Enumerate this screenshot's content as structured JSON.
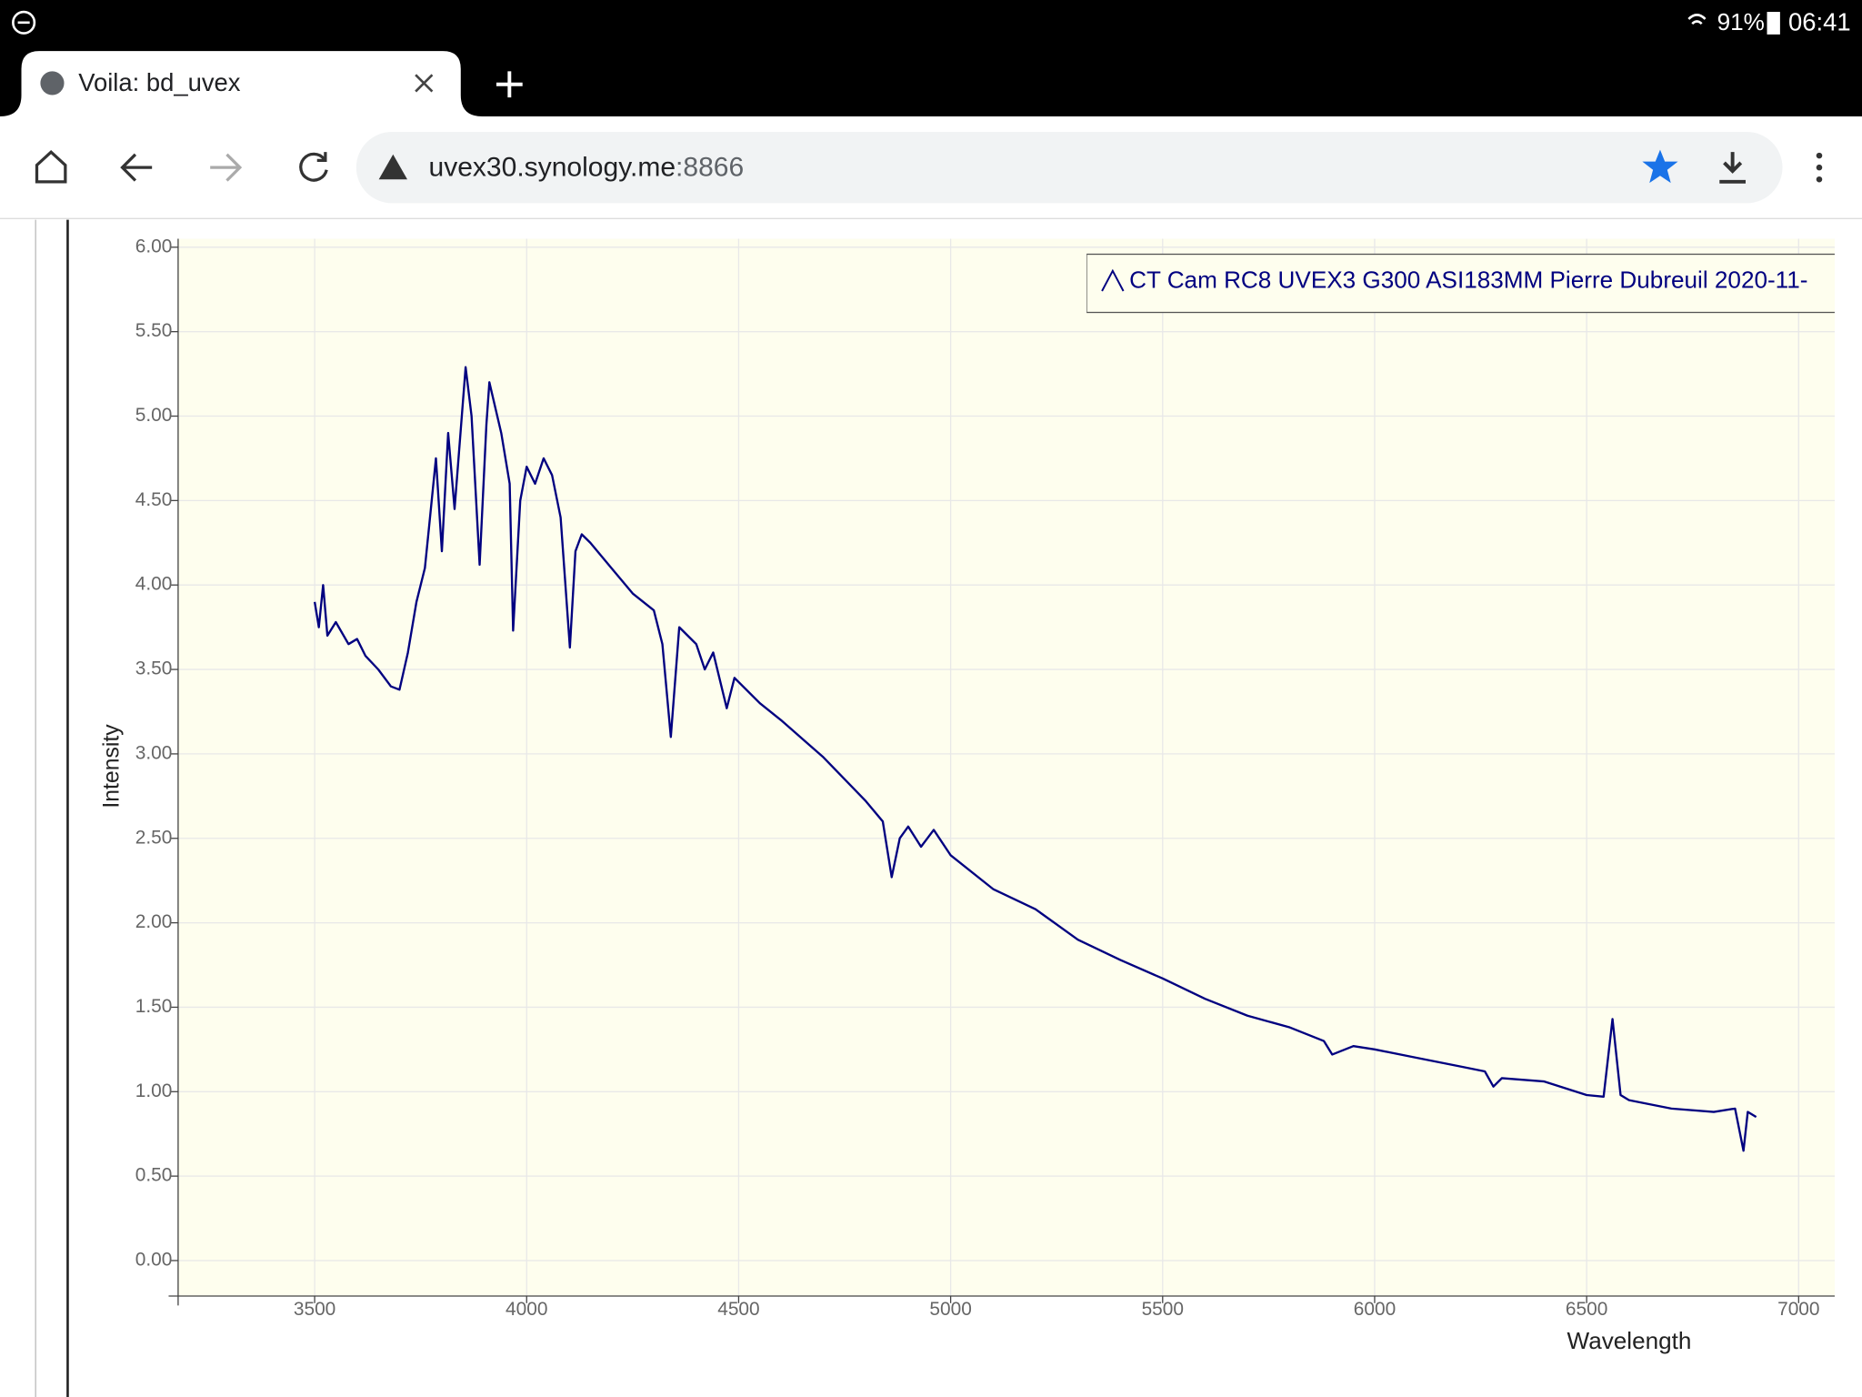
{
  "status_bar": {
    "battery": "91%",
    "time": "06:41"
  },
  "browser": {
    "tab_title": "Voila: bd_uvex",
    "url_host": "uvex30.synology.me",
    "url_port": ":8866"
  },
  "chart_data": {
    "type": "line",
    "x_label": "Wavelength",
    "y_label": "Intensity",
    "x": [
      3500,
      3510,
      3520,
      3530,
      3550,
      3580,
      3600,
      3620,
      3650,
      3680,
      3700,
      3720,
      3740,
      3760,
      3770,
      3786,
      3800,
      3815,
      3830,
      3856,
      3870,
      3889,
      3905,
      3912,
      3940,
      3960,
      3968,
      3985,
      4000,
      4020,
      4040,
      4060,
      4080,
      4102,
      4115,
      4130,
      4150,
      4200,
      4250,
      4300,
      4320,
      4340,
      4360,
      4400,
      4420,
      4440,
      4472,
      4490,
      4550,
      4600,
      4700,
      4800,
      4840,
      4861,
      4880,
      4900,
      4930,
      4960,
      5000,
      5100,
      5200,
      5300,
      5400,
      5500,
      5600,
      5700,
      5800,
      5880,
      5900,
      5950,
      6000,
      6100,
      6200,
      6260,
      6280,
      6300,
      6400,
      6500,
      6540,
      6561,
      6580,
      6600,
      6700,
      6800,
      6850,
      6870,
      6880,
      6900
    ],
    "series": [
      {
        "name": "CT Cam RC8 UVEX3 G300 ASI183MM Pierre Dubreuil 2020-11-",
        "color": "#000080",
        "values": [
          3.9,
          3.75,
          4.0,
          3.7,
          3.78,
          3.65,
          3.68,
          3.58,
          3.5,
          3.4,
          3.38,
          3.6,
          3.9,
          4.1,
          4.35,
          4.75,
          4.2,
          4.9,
          4.45,
          5.29,
          5.0,
          4.12,
          4.95,
          5.2,
          4.9,
          4.6,
          3.73,
          4.5,
          4.7,
          4.6,
          4.75,
          4.65,
          4.4,
          3.63,
          4.2,
          4.3,
          4.25,
          4.1,
          3.95,
          3.85,
          3.65,
          3.1,
          3.75,
          3.65,
          3.5,
          3.6,
          3.27,
          3.45,
          3.3,
          3.2,
          2.98,
          2.72,
          2.6,
          2.27,
          2.5,
          2.57,
          2.45,
          2.55,
          2.4,
          2.2,
          2.08,
          1.9,
          1.78,
          1.67,
          1.55,
          1.45,
          1.38,
          1.3,
          1.22,
          1.27,
          1.25,
          1.2,
          1.15,
          1.12,
          1.03,
          1.08,
          1.06,
          0.98,
          0.97,
          1.43,
          0.98,
          0.95,
          0.9,
          0.88,
          0.9,
          0.65,
          0.88,
          0.85
        ]
      }
    ],
    "xlim": [
      3178,
      7085
    ],
    "ylim": [
      -0.21,
      6.05
    ],
    "xticks": [
      3500,
      4000,
      4500,
      5000,
      5500,
      6000,
      6500,
      7000
    ],
    "yticks": [
      {
        "value": 0,
        "label": "0.00"
      },
      {
        "value": 0.5,
        "label": "0.50"
      },
      {
        "value": 1,
        "label": "1.00"
      },
      {
        "value": 1.5,
        "label": "1.50"
      },
      {
        "value": 2,
        "label": "2.00"
      },
      {
        "value": 2.5,
        "label": "2.50"
      },
      {
        "value": 3,
        "label": "3.00"
      },
      {
        "value": 3.5,
        "label": "3.50"
      },
      {
        "value": 4,
        "label": "4.00"
      },
      {
        "value": 4.5,
        "label": "4.50"
      },
      {
        "value": 5,
        "label": "5.00"
      },
      {
        "value": 5.5,
        "label": "5.50"
      },
      {
        "value": 6,
        "label": "6.00"
      }
    ],
    "grid": true,
    "legend": "upper right",
    "background": "#fefeee"
  }
}
